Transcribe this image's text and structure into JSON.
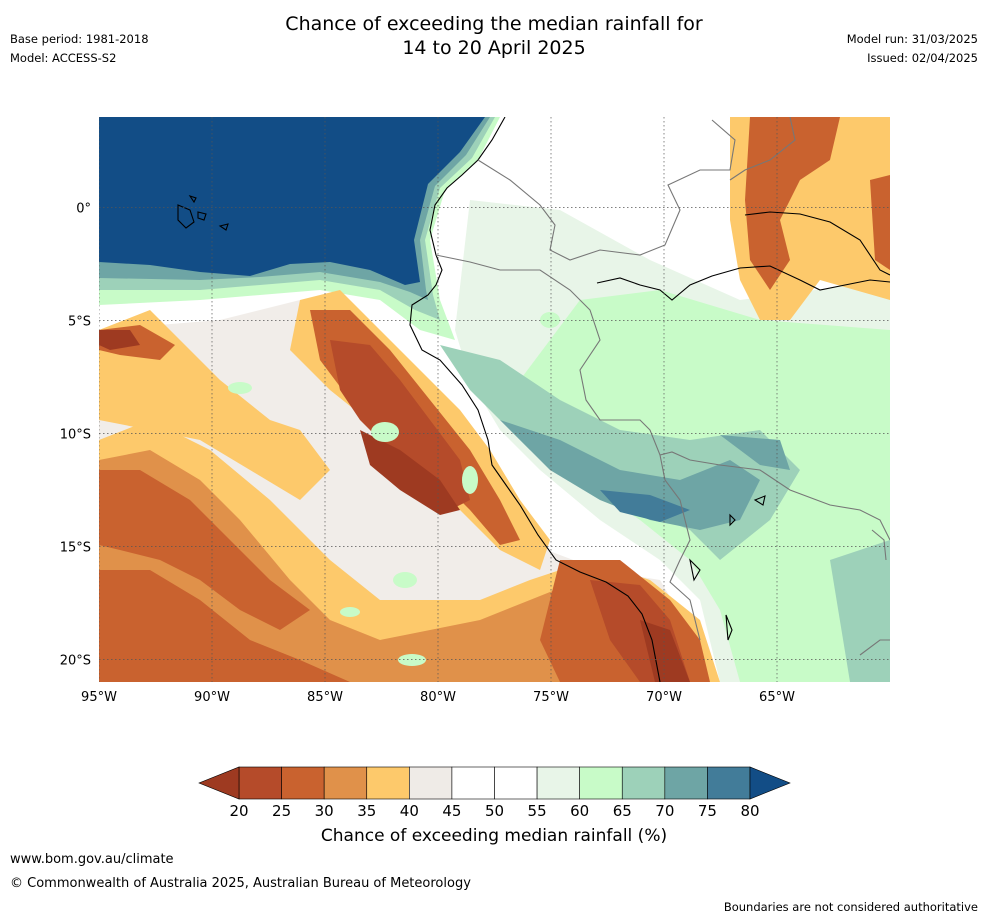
{
  "header": {
    "title_line1": "Chance of exceeding the median rainfall for",
    "title_line2": "14 to 20 April 2025",
    "base_period": "Base period: 1981-2018",
    "model": "Model: ACCESS-S2",
    "model_run": "Model run: 31/03/2025",
    "issued": "Issued: 02/04/2025"
  },
  "map": {
    "lat_labels": [
      "0°",
      "5°S",
      "10°S",
      "15°S",
      "20°S"
    ],
    "lon_labels": [
      "95°W",
      "90°W",
      "85°W",
      "80°W",
      "75°W",
      "70°W",
      "65°W"
    ],
    "lat_values": [
      0,
      -5,
      -10,
      -15,
      -20
    ],
    "lon_values": [
      -95,
      -90,
      -85,
      -80,
      -75,
      -70,
      -65
    ],
    "lon_range": [
      -95,
      -60
    ],
    "lat_range": [
      -21,
      4
    ]
  },
  "legend": {
    "title": "Chance of exceeding median rainfall (%)",
    "tick_labels": [
      "20",
      "25",
      "30",
      "35",
      "40",
      "45",
      "50",
      "55",
      "60",
      "65",
      "70",
      "75",
      "80"
    ],
    "colors": [
      "#9e3a21",
      "#b54b2a",
      "#c9622f",
      "#e0914a",
      "#fdc96b",
      "#efebe7",
      "#ffffff",
      "#ffffff",
      "#e8f5e8",
      "#c8fbc8",
      "#9dd1b9",
      "#6ea5a5",
      "#427c99",
      "#124d86"
    ],
    "under_color": "#9e3a21",
    "over_color": "#124d86"
  },
  "footer": {
    "website": "www.bom.gov.au/climate",
    "copyright": "© Commonwealth of Australia 2025, Australian Bureau of Meteorology",
    "disclaimer": "Boundaries are not considered authoritative"
  }
}
